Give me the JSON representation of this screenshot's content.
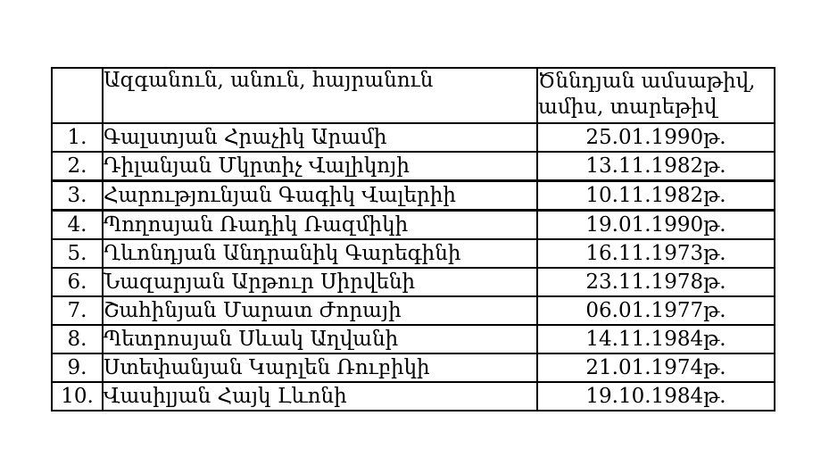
{
  "table": {
    "headers": {
      "number": "",
      "name": "Ազգանուն, անուն, հայրանուն",
      "birth_line1": "Ծննդյան ամսաթիվ,",
      "birth_line2": "ամիս, տարեթիվ"
    },
    "rows": [
      {
        "num": "1.",
        "name": "Գալստյան Հրաչիկ Արամի",
        "date": "25.01.1990թ."
      },
      {
        "num": "2.",
        "name": "Դիլանյան Մկրտիչ Վալիկոյի",
        "date": "13.11.1982թ."
      },
      {
        "num": "3.",
        "name": "Հարությունյան Գագիկ Վալերիի",
        "date": "10.11.1982թ."
      },
      {
        "num": "4.",
        "name": "Պողոսյան Ռադիկ Ռազմիկի",
        "date": "19.01.1990թ."
      },
      {
        "num": "5.",
        "name": "Ղևոնդյան Անդրանիկ Գարեգինի",
        "date": "16.11.1973թ."
      },
      {
        "num": "6.",
        "name": "Նազարյան Արթուր Սիրվենի",
        "date": "23.11.1978թ."
      },
      {
        "num": "7.",
        "name": "Շահինյան Մարատ Ժորայի",
        "date": "06.01.1977թ."
      },
      {
        "num": "8.",
        "name": "Պետրոսյան Սևակ Աղվանի",
        "date": "14.11.1984թ."
      },
      {
        "num": "9.",
        "name": "Ստեփանյան Կարլեն Ռուբիկի",
        "date": "21.01.1974թ."
      },
      {
        "num": "10.",
        "name": "Վասիլյան Հայկ Լևոնի",
        "date": "19.10.1984թ."
      }
    ],
    "colors": {
      "border": "#000000",
      "background": "#ffffff",
      "text": "#000000"
    }
  }
}
